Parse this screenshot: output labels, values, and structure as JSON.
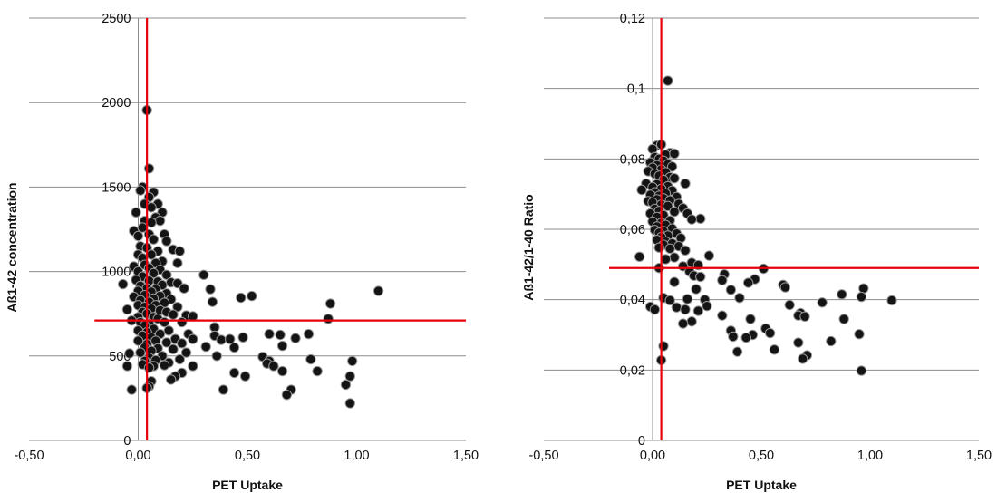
{
  "chart_data": [
    {
      "type": "scatter",
      "xlabel": "PET Uptake",
      "ylabel": "Aß1-42 concentration",
      "xlim": [
        -0.5,
        1.5
      ],
      "ylim": [
        0,
        2500
      ],
      "xticks": [
        -0.5,
        0.0,
        0.5,
        1.0,
        1.5
      ],
      "xtick_labels": [
        "-0,50",
        "0,00",
        "0,50",
        "1,00",
        "1,50"
      ],
      "yticks": [
        0,
        500,
        1000,
        1500,
        2000,
        2500
      ],
      "ytick_labels": [
        "0",
        "500",
        "1000",
        "1500",
        "2000",
        "2500"
      ],
      "grid": "horizontal",
      "reference_lines": {
        "x": 0.04,
        "y": 710
      },
      "colors": {
        "points": "#141414",
        "reference": "#e8000b",
        "grid": "#8c8c8c"
      },
      "points": [
        [
          0.04,
          1955
        ],
        [
          0.05,
          1610
        ],
        [
          0.02,
          1500
        ],
        [
          0.01,
          1480
        ],
        [
          0.07,
          1470
        ],
        [
          0.05,
          1440
        ],
        [
          0.09,
          1400
        ],
        [
          0.03,
          1400
        ],
        [
          0.06,
          1380
        ],
        [
          0.11,
          1350
        ],
        [
          -0.01,
          1350
        ],
        [
          0.08,
          1320
        ],
        [
          0.03,
          1300
        ],
        [
          0.1,
          1300
        ],
        [
          0.06,
          1290
        ],
        [
          0.02,
          1260
        ],
        [
          -0.02,
          1240
        ],
        [
          0.05,
          1220
        ],
        [
          0.12,
          1220
        ],
        [
          0.0,
          1210
        ],
        [
          0.07,
          1190
        ],
        [
          0.13,
          1180
        ],
        [
          0.01,
          1150
        ],
        [
          0.04,
          1140
        ],
        [
          0.16,
          1130
        ],
        [
          0.19,
          1120
        ],
        [
          0.09,
          1120
        ],
        [
          0.0,
          1100
        ],
        [
          0.06,
          1100
        ],
        [
          0.02,
          1080
        ],
        [
          0.11,
          1060
        ],
        [
          0.08,
          1050
        ],
        [
          0.03,
          1040
        ],
        [
          0.18,
          1050
        ],
        [
          -0.02,
          1030
        ],
        [
          0.05,
          1020
        ],
        [
          0.1,
          1010
        ],
        [
          0.0,
          1000
        ],
        [
          0.07,
          990
        ],
        [
          0.13,
          980
        ],
        [
          0.02,
          970
        ],
        [
          0.3,
          980
        ],
        [
          -0.01,
          950
        ],
        [
          0.05,
          945
        ],
        [
          0.09,
          940
        ],
        [
          0.15,
          935
        ],
        [
          0.18,
          930
        ],
        [
          0.11,
          920
        ],
        [
          -0.07,
          925
        ],
        [
          0.01,
          915
        ],
        [
          0.04,
          900
        ],
        [
          0.08,
          895
        ],
        [
          0.0,
          885
        ],
        [
          0.06,
          880
        ],
        [
          0.21,
          900
        ],
        [
          0.33,
          895
        ],
        [
          0.13,
          870
        ],
        [
          0.03,
          860
        ],
        [
          0.1,
          855
        ],
        [
          0.52,
          855
        ],
        [
          0.47,
          845
        ],
        [
          -0.02,
          850
        ],
        [
          0.07,
          840
        ],
        [
          0.15,
          835
        ],
        [
          0.01,
          830
        ],
        [
          0.05,
          820
        ],
        [
          0.12,
          815
        ],
        [
          0.34,
          820
        ],
        [
          0.88,
          810
        ],
        [
          0.0,
          800
        ],
        [
          0.08,
          800
        ],
        [
          0.03,
          790
        ],
        [
          0.18,
          790
        ],
        [
          0.06,
          780
        ],
        [
          -0.05,
          775
        ],
        [
          0.1,
          770
        ],
        [
          0.13,
          760
        ],
        [
          0.02,
          760
        ],
        [
          0.04,
          750
        ],
        [
          0.16,
          745
        ],
        [
          0.22,
          740
        ],
        [
          0.07,
          730
        ],
        [
          0.0,
          730
        ],
        [
          0.25,
          735
        ],
        [
          0.09,
          720
        ],
        [
          0.87,
          720
        ],
        [
          1.1,
          885
        ],
        [
          -0.03,
          710
        ],
        [
          0.01,
          700
        ],
        [
          0.12,
          700
        ],
        [
          0.05,
          690
        ],
        [
          0.2,
          700
        ],
        [
          0.03,
          680
        ],
        [
          0.35,
          670
        ],
        [
          0.07,
          660
        ],
        [
          0.14,
          650
        ],
        [
          0.0,
          650
        ],
        [
          0.04,
          640
        ],
        [
          0.23,
          630
        ],
        [
          0.1,
          630
        ],
        [
          0.02,
          620
        ],
        [
          0.35,
          620
        ],
        [
          0.17,
          600
        ],
        [
          0.06,
          610
        ],
        [
          0.48,
          610
        ],
        [
          0.25,
          600
        ],
        [
          0.08,
          590
        ],
        [
          0.38,
          595
        ],
        [
          0.42,
          600
        ],
        [
          0.6,
          630
        ],
        [
          0.65,
          625
        ],
        [
          0.72,
          605
        ],
        [
          0.78,
          630
        ],
        [
          0.0,
          590
        ],
        [
          0.13,
          580
        ],
        [
          0.04,
          570
        ],
        [
          0.2,
          575
        ],
        [
          0.31,
          555
        ],
        [
          0.44,
          550
        ],
        [
          0.66,
          560
        ],
        [
          0.03,
          550
        ],
        [
          0.09,
          545
        ],
        [
          0.16,
          540
        ],
        [
          0.06,
          530
        ],
        [
          0.22,
          520
        ],
        [
          0.01,
          520
        ],
        [
          -0.04,
          515
        ],
        [
          0.36,
          500
        ],
        [
          0.11,
          500
        ],
        [
          0.05,
          490
        ],
        [
          0.57,
          495
        ],
        [
          0.19,
          480
        ],
        [
          0.08,
          475
        ],
        [
          0.6,
          470
        ],
        [
          0.79,
          480
        ],
        [
          0.03,
          470
        ],
        [
          0.98,
          470
        ],
        [
          0.14,
          460
        ],
        [
          0.59,
          455
        ],
        [
          0.02,
          450
        ],
        [
          0.12,
          445
        ],
        [
          0.07,
          440
        ],
        [
          0.25,
          440
        ],
        [
          0.62,
          440
        ],
        [
          -0.05,
          440
        ],
        [
          0.05,
          430
        ],
        [
          0.66,
          410
        ],
        [
          0.82,
          410
        ],
        [
          0.44,
          400
        ],
        [
          0.2,
          400
        ],
        [
          0.49,
          380
        ],
        [
          0.17,
          380
        ],
        [
          0.97,
          380
        ],
        [
          0.15,
          360
        ],
        [
          0.06,
          350
        ],
        [
          0.95,
          330
        ],
        [
          0.05,
          320
        ],
        [
          0.04,
          310
        ],
        [
          0.7,
          300
        ],
        [
          0.39,
          300
        ],
        [
          -0.03,
          300
        ],
        [
          0.68,
          270
        ],
        [
          0.97,
          220
        ]
      ]
    },
    {
      "type": "scatter",
      "xlabel": "PET Uptake",
      "ylabel": "Aß1-42/1-40 Ratio",
      "xlim": [
        -0.5,
        1.5
      ],
      "ylim": [
        0,
        0.12
      ],
      "xticks": [
        -0.5,
        0.0,
        0.5,
        1.0,
        1.5
      ],
      "xtick_labels": [
        "-0,50",
        "0,00",
        "0,50",
        "1,00",
        "1,50"
      ],
      "yticks": [
        0,
        0.02,
        0.04,
        0.06,
        0.08,
        0.1,
        0.12
      ],
      "ytick_labels": [
        "0",
        "0,02",
        "0,04",
        "0,06",
        "0,08",
        "0,1",
        "0,12"
      ],
      "grid": "horizontal",
      "reference_lines": {
        "x": 0.04,
        "y": 0.049
      },
      "colors": {
        "points": "#141414",
        "reference": "#e8000b",
        "grid": "#8c8c8c"
      },
      "points": [
        [
          0.07,
          0.1022
        ],
        [
          0.02,
          0.0838
        ],
        [
          0.04,
          0.0841
        ],
        [
          0.0,
          0.0828
        ],
        [
          0.08,
          0.0817
        ],
        [
          0.06,
          0.0812
        ],
        [
          0.1,
          0.0815
        ],
        [
          0.01,
          0.0805
        ],
        [
          0.03,
          0.08
        ],
        [
          0.05,
          0.0795
        ],
        [
          -0.01,
          0.079
        ],
        [
          0.07,
          0.0785
        ],
        [
          0.02,
          0.0782
        ],
        [
          0.09,
          0.0778
        ],
        [
          0.0,
          0.0775
        ],
        [
          0.04,
          0.077
        ],
        [
          -0.02,
          0.0765
        ],
        [
          0.06,
          0.0762
        ],
        [
          0.01,
          0.0758
        ],
        [
          0.03,
          0.0752
        ],
        [
          0.08,
          0.0748
        ],
        [
          0.1,
          0.0745
        ],
        [
          0.05,
          0.074
        ],
        [
          0.15,
          0.073
        ],
        [
          -0.03,
          0.073
        ],
        [
          0.02,
          0.0728
        ],
        [
          0.07,
          0.0722
        ],
        [
          0.0,
          0.072
        ],
        [
          0.04,
          0.0715
        ],
        [
          -0.05,
          0.0712
        ],
        [
          0.09,
          0.071
        ],
        [
          0.01,
          0.0705
        ],
        [
          0.06,
          0.0702
        ],
        [
          -0.01,
          0.0698
        ],
        [
          0.03,
          0.0695
        ],
        [
          0.11,
          0.0692
        ],
        [
          0.05,
          0.0688
        ],
        [
          0.02,
          0.0685
        ],
        [
          0.08,
          0.0682
        ],
        [
          -0.02,
          0.068
        ],
        [
          0.0,
          0.0676
        ],
        [
          0.12,
          0.0672
        ],
        [
          0.04,
          0.067
        ],
        [
          0.07,
          0.0666
        ],
        [
          0.14,
          0.066
        ],
        [
          0.01,
          0.0658
        ],
        [
          0.03,
          0.0652
        ],
        [
          0.1,
          0.065
        ],
        [
          0.16,
          0.0645
        ],
        [
          -0.01,
          0.0645
        ],
        [
          0.05,
          0.064
        ],
        [
          0.02,
          0.0635
        ],
        [
          0.22,
          0.063
        ],
        [
          0.18,
          0.0628
        ],
        [
          0.08,
          0.0625
        ],
        [
          0.0,
          0.0622
        ],
        [
          0.04,
          0.0618
        ],
        [
          0.06,
          0.0612
        ],
        [
          0.02,
          0.0608
        ],
        [
          0.09,
          0.0602
        ],
        [
          0.01,
          0.0598
        ],
        [
          0.05,
          0.0595
        ],
        [
          0.03,
          0.059
        ],
        [
          0.11,
          0.0588
        ],
        [
          0.07,
          0.0582
        ],
        [
          0.04,
          0.0578
        ],
        [
          0.13,
          0.0575
        ],
        [
          0.02,
          0.057
        ],
        [
          0.06,
          0.0565
        ],
        [
          0.09,
          0.056
        ],
        [
          0.05,
          0.0556
        ],
        [
          0.12,
          0.0552
        ],
        [
          0.03,
          0.0548
        ],
        [
          0.08,
          0.0545
        ],
        [
          0.15,
          0.054
        ],
        [
          0.26,
          0.0525
        ],
        [
          -0.06,
          0.0522
        ],
        [
          0.1,
          0.052
        ],
        [
          0.06,
          0.0515
        ],
        [
          0.18,
          0.0505
        ],
        [
          0.21,
          0.0498
        ],
        [
          0.14,
          0.0495
        ],
        [
          0.51,
          0.0488
        ],
        [
          0.03,
          0.049
        ],
        [
          0.17,
          0.048
        ],
        [
          0.33,
          0.0472
        ],
        [
          0.19,
          0.0468
        ],
        [
          0.22,
          0.0465
        ],
        [
          0.47,
          0.0458
        ],
        [
          0.32,
          0.0455
        ],
        [
          0.44,
          0.0448
        ],
        [
          0.1,
          0.045
        ],
        [
          0.6,
          0.0442
        ],
        [
          0.61,
          0.0435
        ],
        [
          0.2,
          0.043
        ],
        [
          0.36,
          0.0428
        ],
        [
          0.97,
          0.0432
        ],
        [
          0.87,
          0.0415
        ],
        [
          0.96,
          0.0408
        ],
        [
          0.05,
          0.0405
        ],
        [
          0.4,
          0.0405
        ],
        [
          0.16,
          0.0402
        ],
        [
          0.08,
          0.0398
        ],
        [
          0.24,
          0.04
        ],
        [
          0.78,
          0.0392
        ],
        [
          1.1,
          0.0398
        ],
        [
          0.25,
          0.0382
        ],
        [
          0.63,
          0.0385
        ],
        [
          0.11,
          0.0378
        ],
        [
          0.15,
          0.0372
        ],
        [
          0.21,
          0.0368
        ],
        [
          0.68,
          0.0362
        ],
        [
          0.32,
          0.0355
        ],
        [
          0.67,
          0.0355
        ],
        [
          0.88,
          0.0345
        ],
        [
          0.45,
          0.0345
        ],
        [
          0.7,
          0.0352
        ],
        [
          0.18,
          0.0338
        ],
        [
          0.14,
          0.0332
        ],
        [
          0.52,
          0.0318
        ],
        [
          0.36,
          0.0312
        ],
        [
          0.54,
          0.0305
        ],
        [
          0.95,
          0.0302
        ],
        [
          0.46,
          0.03
        ],
        [
          0.37,
          0.0295
        ],
        [
          0.43,
          0.0292
        ],
        [
          0.82,
          0.0282
        ],
        [
          0.67,
          0.0278
        ],
        [
          0.05,
          0.0268
        ],
        [
          0.56,
          0.0258
        ],
        [
          0.39,
          0.0252
        ],
        [
          0.71,
          0.0242
        ],
        [
          0.69,
          0.0232
        ],
        [
          0.04,
          0.0228
        ],
        [
          0.96,
          0.0198
        ],
        [
          -0.01,
          0.038
        ],
        [
          0.01,
          0.0372
        ]
      ]
    }
  ]
}
